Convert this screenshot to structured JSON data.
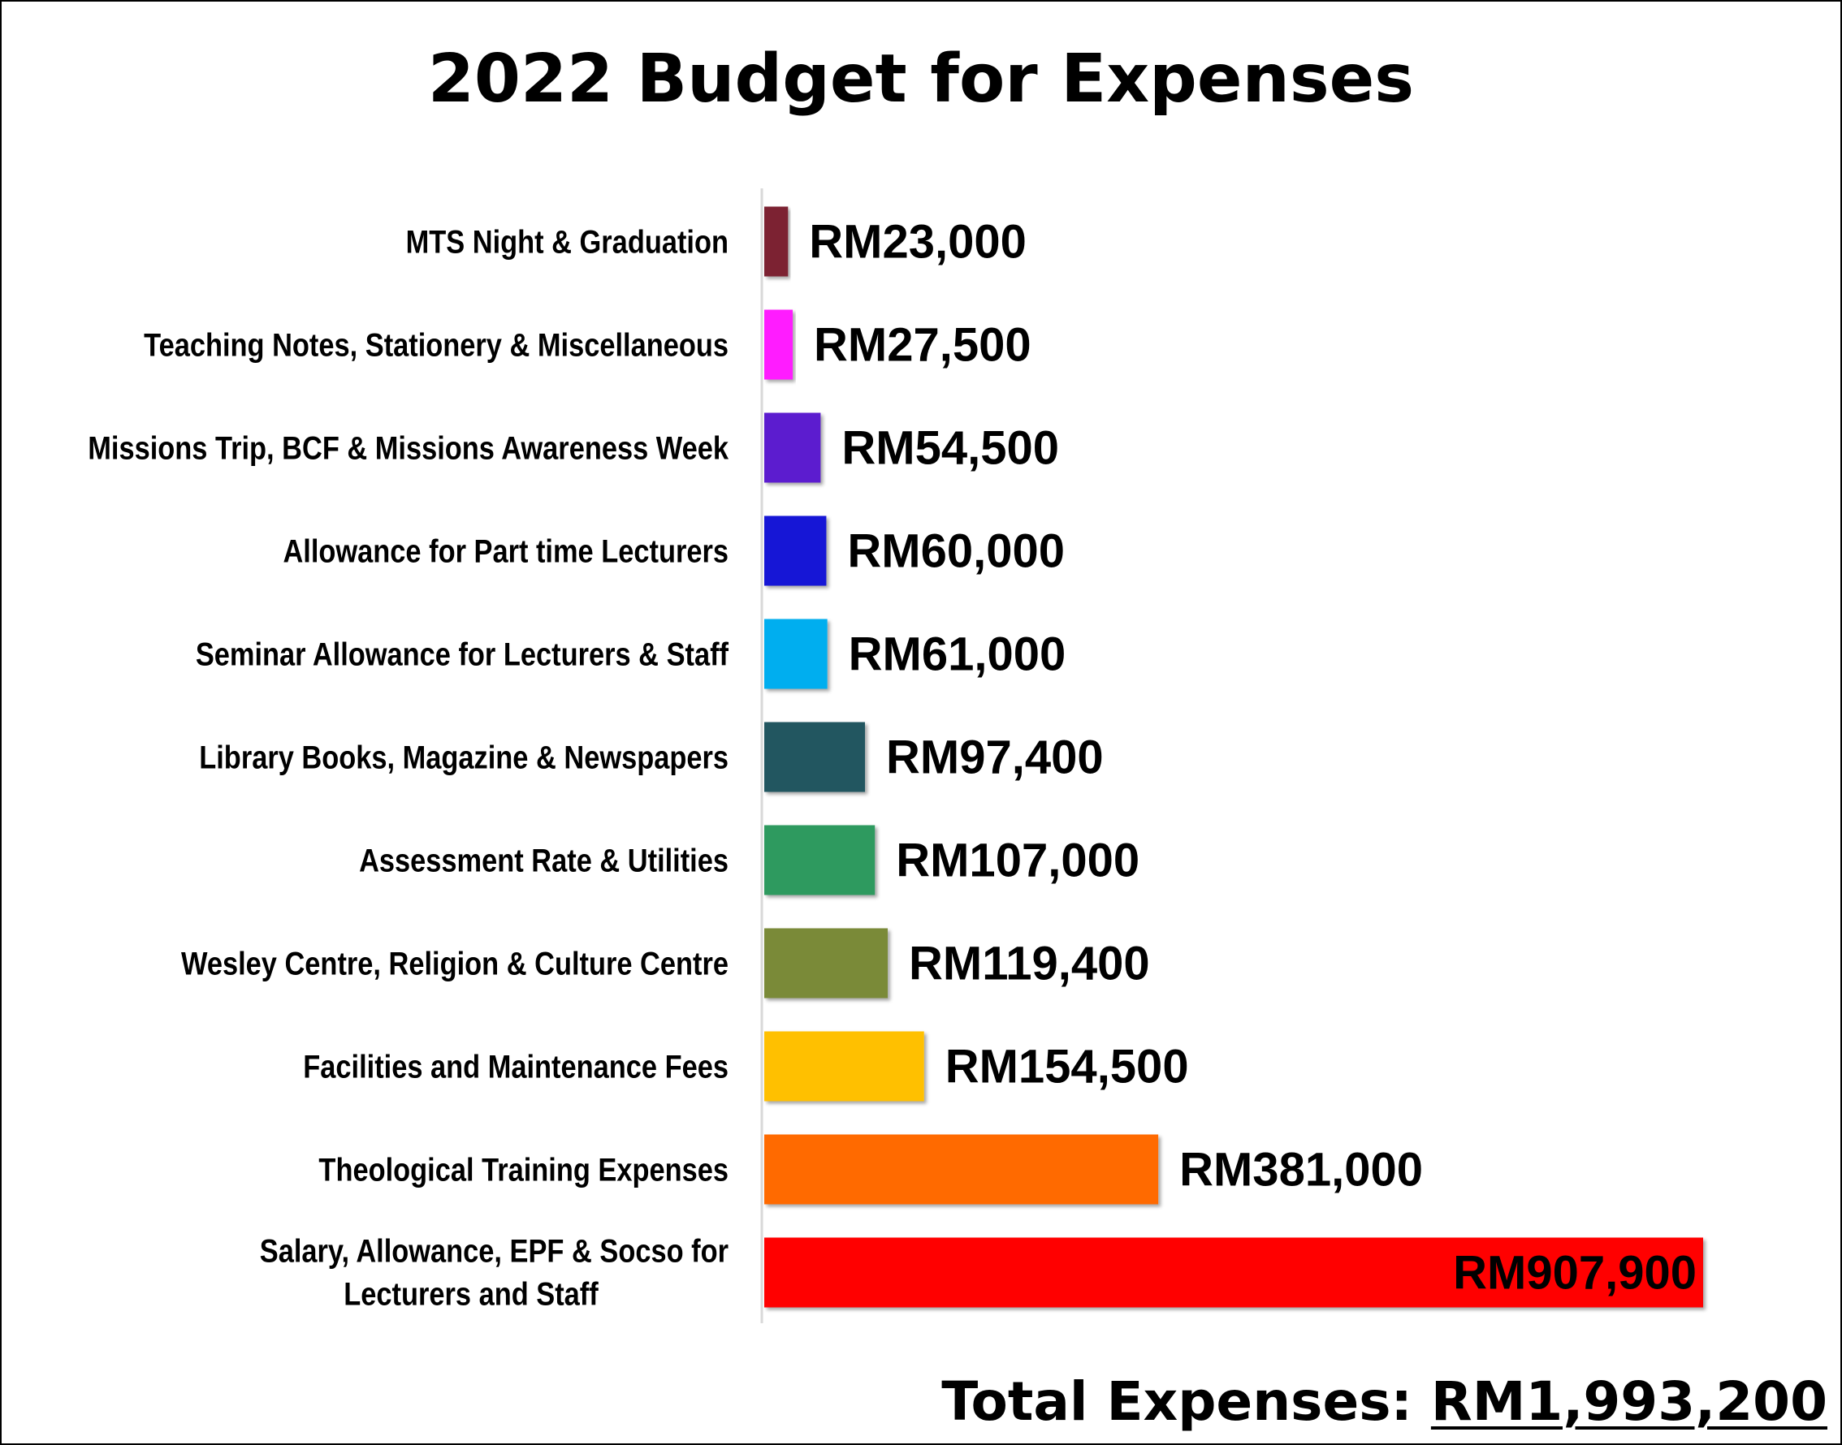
{
  "chart_data": {
    "type": "bar",
    "orientation": "horizontal",
    "title": "2022 Budget for Expenses",
    "categories": [
      "MTS Night & Graduation",
      "Teaching Notes, Stationery & Miscellaneous",
      "Missions Trip, BCF & Missions Awareness Week",
      "Allowance for Part time Lecturers",
      "Seminar Allowance for Lecturers & Staff",
      "Library Books, Magazine & Newspapers",
      "Assessment Rate & Utilities",
      "Wesley Centre, Religion & Culture Centre",
      "Facilities and Maintenance Fees",
      "Theological Training Expenses",
      "Salary, Allowance, EPF & Socso for Lecturers and Staff"
    ],
    "values": [
      23000,
      27500,
      54500,
      60000,
      61000,
      97400,
      107000,
      119400,
      154500,
      381000,
      907900
    ],
    "data_labels": [
      "RM23,000",
      "RM27,500",
      "RM54,500",
      "RM60,000",
      "RM61,000",
      "RM97,400",
      "RM107,000",
      "RM119,400",
      "RM154,500",
      "RM381,000",
      "RM907,900"
    ],
    "colors": [
      "#7B2230",
      "#FF1AFF",
      "#5B1FCF",
      "#1414D6",
      "#00AEEF",
      "#245660",
      "#2E9A5E",
      "#7A8A38",
      "#FFC000",
      "#FF6A00",
      "#FF0000"
    ],
    "xlim": [
      0,
      907900
    ],
    "grid": false,
    "legend": "none"
  },
  "total": {
    "label": "Total Expenses: ",
    "value": "RM1,993,200"
  }
}
